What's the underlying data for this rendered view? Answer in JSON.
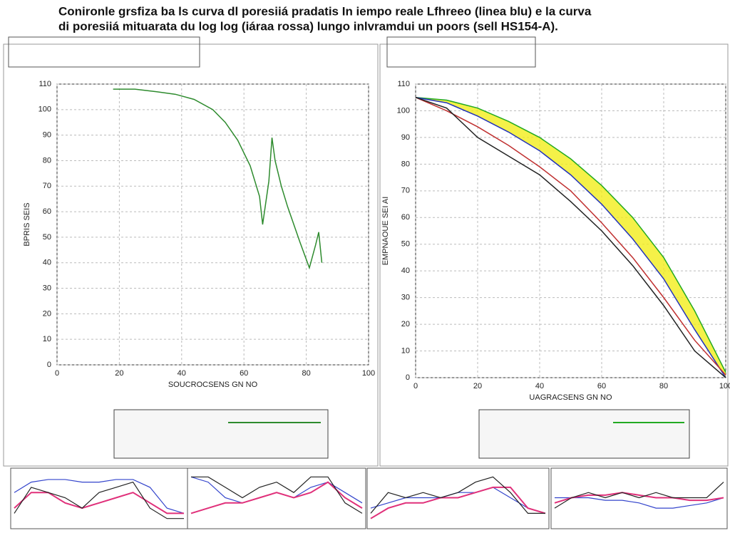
{
  "title": [
    "Conironle grsfiza ba ls curva dl poresiiá pradatis In iempo reale  Lfhreeo (linea blu) e la curva",
    "di poresiiá mituarata du log log (iárаa rossa) lungo  inlvramdui un poors (sell HS154-A)."
  ],
  "chart_data": [
    {
      "type": "line",
      "xlabel": "SOUCROCSENS GN NO",
      "ylabel": "BPRIS SEIS",
      "xlim": [
        0,
        100
      ],
      "xticks": [
        0,
        20,
        40,
        60,
        80,
        100
      ],
      "ylim": [
        0,
        110
      ],
      "yticks": [
        0,
        10,
        20,
        30,
        40,
        50,
        60,
        70,
        80,
        90,
        100,
        110
      ],
      "grid": true,
      "x": [
        18,
        25,
        32,
        38,
        44,
        50,
        54,
        58,
        62,
        65,
        66,
        68,
        69,
        70,
        72,
        74,
        78,
        81,
        83,
        84,
        85
      ],
      "series": [
        {
          "color": "#2e8b2e",
          "values": [
            108,
            108,
            107,
            106,
            104,
            100,
            95,
            88,
            78,
            66,
            55,
            72,
            89,
            80,
            70,
            62,
            48,
            38,
            47,
            52,
            40
          ]
        }
      ]
    },
    {
      "type": "line",
      "xlabel": "UAGRACSENS GN NO",
      "ylabel": "EMPNAOUE SEI AI",
      "xlim": [
        0,
        100
      ],
      "xticks": [
        0,
        20,
        40,
        60,
        80,
        100
      ],
      "ylim": [
        0,
        110
      ],
      "yticks": [
        0,
        10,
        20,
        30,
        40,
        50,
        60,
        70,
        80,
        90,
        100,
        110
      ],
      "grid": true,
      "band": [
        "#f2ee1a",
        0,
        1
      ],
      "x": [
        0,
        10,
        20,
        30,
        40,
        50,
        60,
        70,
        80,
        90,
        100
      ],
      "series": [
        {
          "color": "#22aa22",
          "values": [
            105,
            104,
            101,
            96,
            90,
            82,
            72,
            60,
            45,
            25,
            2
          ]
        },
        {
          "color": "#2233bb",
          "values": [
            105,
            103,
            98,
            92,
            85,
            76,
            65,
            52,
            37,
            18,
            0
          ]
        },
        {
          "color": "#c03030",
          "values": [
            105,
            100,
            94,
            87,
            79,
            70,
            58,
            45,
            30,
            14,
            1
          ]
        },
        {
          "color": "#222222",
          "values": [
            105,
            101,
            90,
            83,
            76,
            66,
            55,
            42,
            27,
            10,
            0
          ]
        }
      ]
    },
    {
      "type": "mini",
      "ylim": [
        0,
        10
      ],
      "x": [
        0,
        1,
        2,
        3,
        4,
        5,
        6,
        7,
        8,
        9,
        10
      ],
      "series": [
        {
          "color": "#3344cc",
          "values": [
            6,
            8,
            8.5,
            8.5,
            8,
            8,
            8.5,
            8.5,
            7,
            3,
            2
          ]
        },
        {
          "color": "#e0307a",
          "values": [
            3,
            6,
            6,
            4,
            3,
            4,
            5,
            6,
            4,
            2,
            2
          ]
        },
        {
          "color": "#222222",
          "values": [
            2,
            7,
            6,
            5,
            3,
            6,
            7,
            8,
            3,
            1,
            1
          ]
        }
      ]
    },
    {
      "type": "mini",
      "ylim": [
        0,
        10
      ],
      "x": [
        0,
        1,
        2,
        3,
        4,
        5,
        6,
        7,
        8,
        9,
        10
      ],
      "series": [
        {
          "color": "#3344cc",
          "values": [
            9,
            8,
            5,
            4,
            5,
            6,
            5,
            7,
            8,
            6,
            4
          ]
        },
        {
          "color": "#e0307a",
          "values": [
            2,
            3,
            4,
            4,
            5,
            6,
            5,
            6,
            8,
            5,
            3
          ]
        },
        {
          "color": "#222222",
          "values": [
            9,
            9,
            7,
            5,
            7,
            8,
            6,
            9,
            9,
            4,
            2
          ]
        }
      ]
    },
    {
      "type": "mini",
      "ylim": [
        0,
        10
      ],
      "x": [
        0,
        1,
        2,
        3,
        4,
        5,
        6,
        7,
        8,
        9,
        10
      ],
      "series": [
        {
          "color": "#3344cc",
          "values": [
            3,
            4,
            5,
            5,
            5,
            6,
            6,
            7,
            5,
            3,
            2
          ]
        },
        {
          "color": "#e0307a",
          "values": [
            1,
            3,
            4,
            4,
            5,
            5,
            6,
            7,
            7,
            3,
            2
          ]
        },
        {
          "color": "#222222",
          "values": [
            2,
            6,
            5,
            6,
            5,
            6,
            8,
            9,
            6,
            2,
            2
          ]
        }
      ]
    },
    {
      "type": "mini",
      "ylim": [
        0,
        10
      ],
      "x": [
        0,
        1,
        2,
        3,
        4,
        5,
        6,
        7,
        8,
        9,
        10
      ],
      "series": [
        {
          "color": "#3344cc",
          "values": [
            5,
            5,
            5,
            4.5,
            4.5,
            4,
            3,
            3,
            3.5,
            4,
            5
          ]
        },
        {
          "color": "#e0307a",
          "values": [
            4,
            5,
            5.5,
            5.5,
            6,
            5.5,
            5,
            5,
            4.5,
            4.5,
            5
          ]
        },
        {
          "color": "#222222",
          "values": [
            3,
            5,
            6,
            5,
            6,
            5,
            6,
            5,
            5,
            5,
            8
          ]
        }
      ]
    }
  ]
}
